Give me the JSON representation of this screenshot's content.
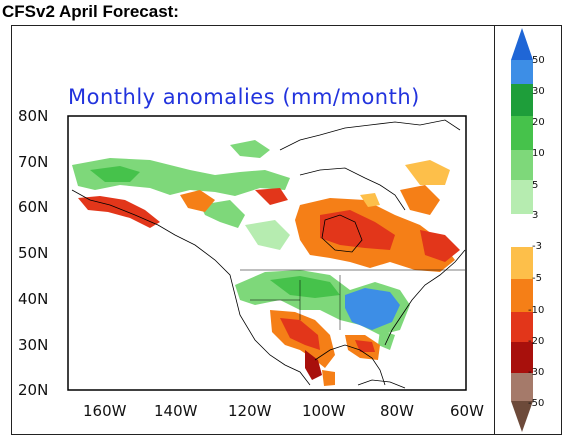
{
  "page_title": "CFSv2 April Forecast:",
  "map_title": "Monthly anomalies (mm/month)",
  "lat_labels": [
    "80N",
    "70N",
    "60N",
    "50N",
    "40N",
    "30N",
    "20N"
  ],
  "lon_labels": [
    "160W",
    "140W",
    "120W",
    "100W",
    "80W",
    "60W"
  ],
  "colorbar": {
    "labels": [
      "50",
      "30",
      "20",
      "10",
      "5",
      "3",
      "-3",
      "-5",
      "-10",
      "-20",
      "-30",
      "-50"
    ],
    "colors": {
      "top_arrow": "#1f66d6",
      "c50": "#3d8ee6",
      "c30": "#1e9e3a",
      "c20": "#46c24b",
      "c10": "#7ed87a",
      "c5": "#b6ecb0",
      "c3": "#ffffff",
      "cm3": "#fdbf4a",
      "cm5": "#f57f17",
      "cm10": "#e2361a",
      "cm20": "#a8100c",
      "cm30": "#a57a6a",
      "bottom_arrow": "#6d4a3a"
    }
  },
  "map_colors": {
    "land": "#ffffff",
    "coast": "#000000",
    "wet_light": "#b6ecb0",
    "wet": "#7ed87a",
    "wet_mid": "#46c24b",
    "wet_strong": "#3d8ee6",
    "dry_light": "#fdbf4a",
    "dry": "#f57f17",
    "dry_mid": "#e2361a",
    "dry_strong": "#a8100c"
  }
}
